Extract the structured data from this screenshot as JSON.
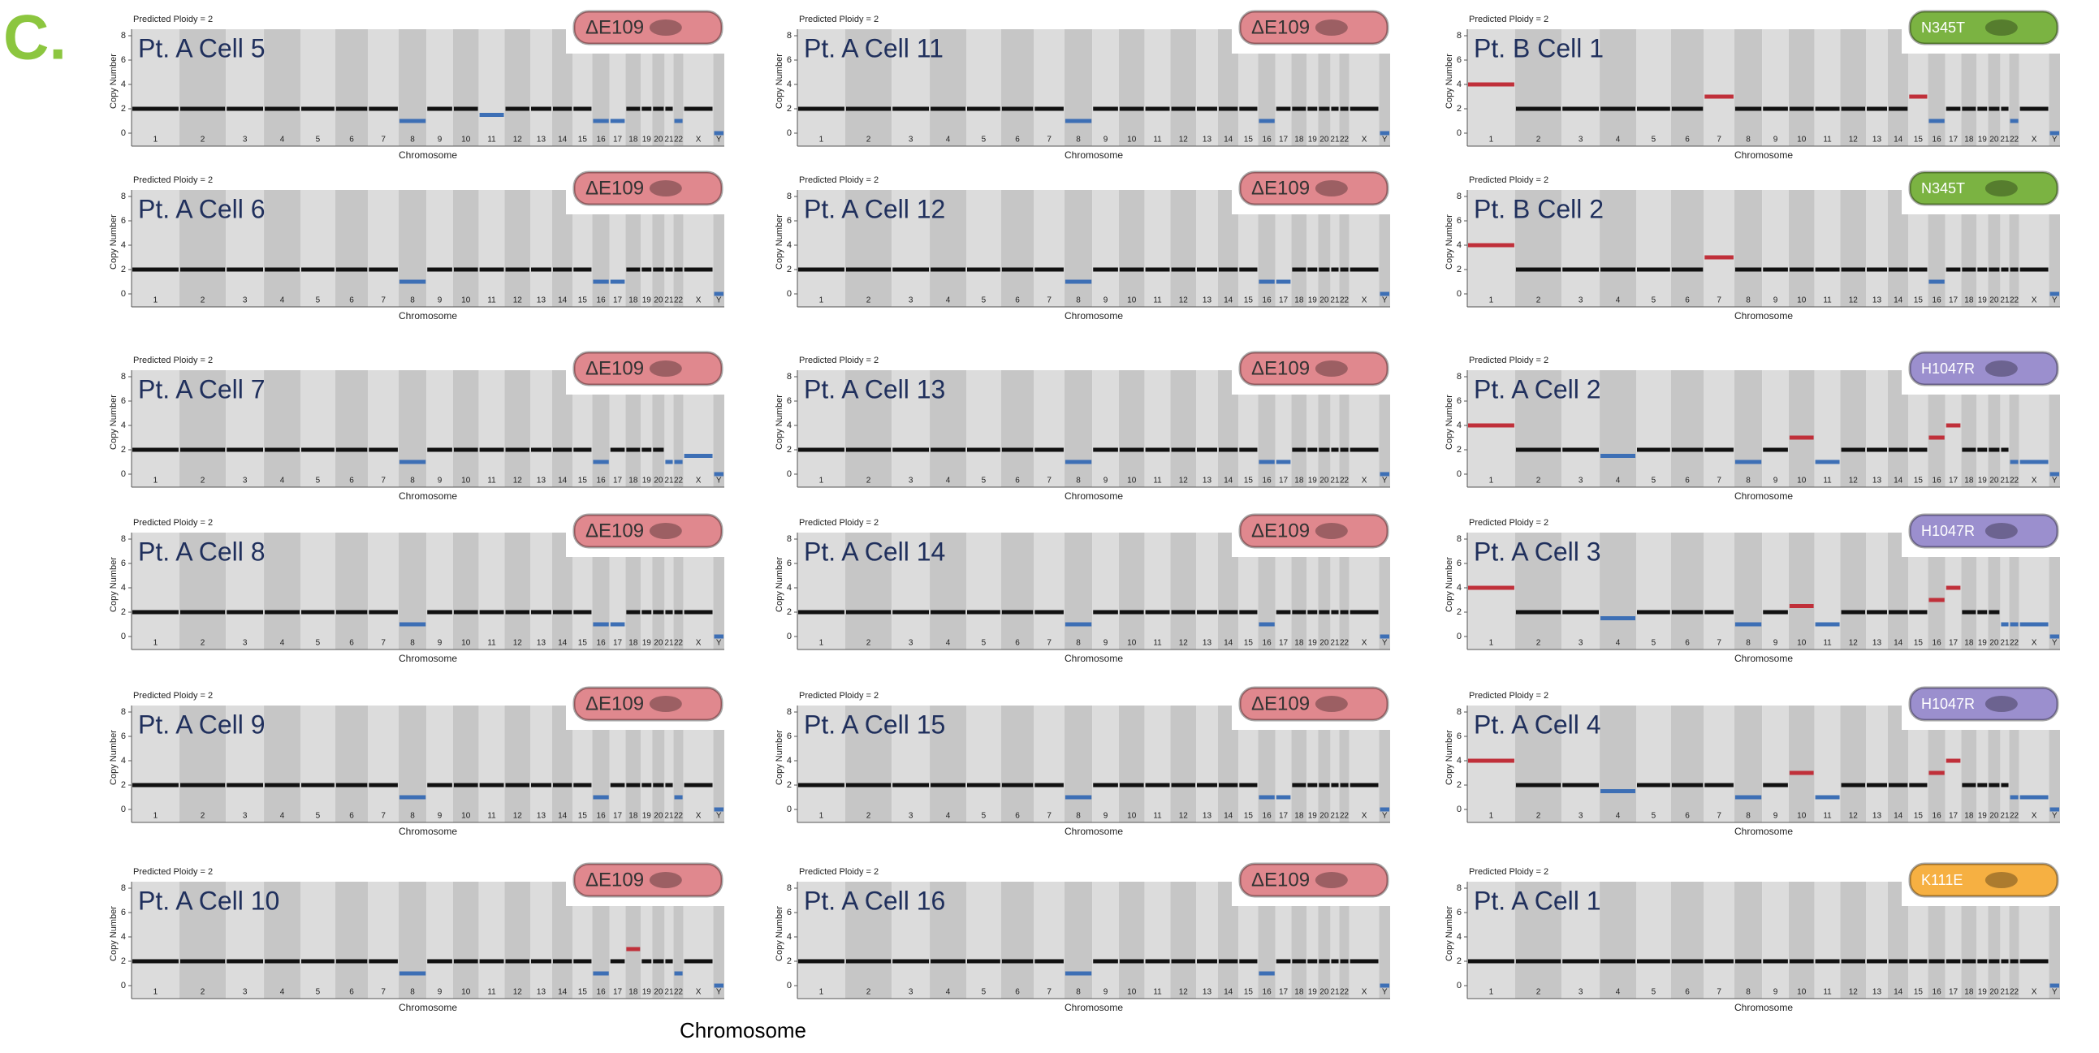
{
  "figure_label": "C.",
  "bottom_label": "Chromosome",
  "chart_data": [
    {
      "type": "segment",
      "title": "Pt. A Cell 5",
      "subtitle": "Predicted Ploidy = 2",
      "annotation": "ΔE109",
      "badge_color": "#e0888e",
      "xlabel": "Chromosome",
      "ylabel": "Copy Number",
      "ylim": [
        0,
        8
      ],
      "yticks": [
        0,
        2,
        4,
        6,
        8
      ],
      "categories": [
        "1",
        "2",
        "3",
        "4",
        "5",
        "6",
        "7",
        "8",
        "9",
        "10",
        "11",
        "12",
        "13",
        "14",
        "15",
        "16",
        "17",
        "18",
        "19",
        "20",
        "21",
        "22",
        "X",
        "Y"
      ],
      "values": [
        2,
        2,
        2,
        2,
        2,
        2,
        2,
        1,
        2,
        2,
        1.5,
        2,
        2,
        2,
        2,
        1,
        1,
        2,
        2,
        2,
        2,
        1,
        2,
        0
      ]
    },
    {
      "type": "segment",
      "title": "Pt. A Cell 6",
      "subtitle": "Predicted Ploidy = 2",
      "annotation": "ΔE109",
      "badge_color": "#e0888e",
      "xlabel": "Chromosome",
      "ylabel": "Copy Number",
      "ylim": [
        0,
        8
      ],
      "yticks": [
        0,
        2,
        4,
        6,
        8
      ],
      "categories": [
        "1",
        "2",
        "3",
        "4",
        "5",
        "6",
        "7",
        "8",
        "9",
        "10",
        "11",
        "12",
        "13",
        "14",
        "15",
        "16",
        "17",
        "18",
        "19",
        "20",
        "21",
        "22",
        "X",
        "Y"
      ],
      "values": [
        2,
        2,
        2,
        2,
        2,
        2,
        2,
        1,
        2,
        2,
        2,
        2,
        2,
        2,
        2,
        1,
        1,
        2,
        2,
        2,
        2,
        2,
        2,
        0
      ]
    },
    {
      "type": "segment",
      "title": "Pt. A Cell 7",
      "subtitle": "Predicted Ploidy = 2",
      "annotation": "ΔE109",
      "badge_color": "#e0888e",
      "xlabel": "Chromosome",
      "ylabel": "Copy Number",
      "ylim": [
        0,
        8
      ],
      "yticks": [
        0,
        2,
        4,
        6,
        8
      ],
      "categories": [
        "1",
        "2",
        "3",
        "4",
        "5",
        "6",
        "7",
        "8",
        "9",
        "10",
        "11",
        "12",
        "13",
        "14",
        "15",
        "16",
        "17",
        "18",
        "19",
        "20",
        "21",
        "22",
        "X",
        "Y"
      ],
      "values": [
        2,
        2,
        2,
        2,
        2,
        2,
        2,
        1,
        2,
        2,
        2,
        2,
        2,
        2,
        2,
        1,
        2,
        2,
        2,
        2,
        1,
        1,
        1.5,
        0
      ]
    },
    {
      "type": "segment",
      "title": "Pt. A Cell 8",
      "subtitle": "Predicted Ploidy = 2",
      "annotation": "ΔE109",
      "badge_color": "#e0888e",
      "xlabel": "Chromosome",
      "ylabel": "Copy Number",
      "ylim": [
        0,
        8
      ],
      "yticks": [
        0,
        2,
        4,
        6,
        8
      ],
      "categories": [
        "1",
        "2",
        "3",
        "4",
        "5",
        "6",
        "7",
        "8",
        "9",
        "10",
        "11",
        "12",
        "13",
        "14",
        "15",
        "16",
        "17",
        "18",
        "19",
        "20",
        "21",
        "22",
        "X",
        "Y"
      ],
      "values": [
        2,
        2,
        2,
        2,
        2,
        2,
        2,
        1,
        2,
        2,
        2,
        2,
        2,
        2,
        2,
        1,
        1,
        2,
        2,
        2,
        2,
        2,
        2,
        0
      ]
    },
    {
      "type": "segment",
      "title": "Pt. A Cell 9",
      "subtitle": "Predicted Ploidy = 2",
      "annotation": "ΔE109",
      "badge_color": "#e0888e",
      "xlabel": "Chromosome",
      "ylabel": "Copy Number",
      "ylim": [
        0,
        8
      ],
      "yticks": [
        0,
        2,
        4,
        6,
        8
      ],
      "categories": [
        "1",
        "2",
        "3",
        "4",
        "5",
        "6",
        "7",
        "8",
        "9",
        "10",
        "11",
        "12",
        "13",
        "14",
        "15",
        "16",
        "17",
        "18",
        "19",
        "20",
        "21",
        "22",
        "X",
        "Y"
      ],
      "values": [
        2,
        2,
        2,
        2,
        2,
        2,
        2,
        1,
        2,
        2,
        2,
        2,
        2,
        2,
        2,
        1,
        2,
        2,
        2,
        2,
        2,
        1,
        2,
        0
      ]
    },
    {
      "type": "segment",
      "title": "Pt. A Cell 10",
      "subtitle": "Predicted Ploidy = 2",
      "annotation": "ΔE109",
      "badge_color": "#e0888e",
      "xlabel": "Chromosome",
      "ylabel": "Copy Number",
      "ylim": [
        0,
        8
      ],
      "yticks": [
        0,
        2,
        4,
        6,
        8
      ],
      "categories": [
        "1",
        "2",
        "3",
        "4",
        "5",
        "6",
        "7",
        "8",
        "9",
        "10",
        "11",
        "12",
        "13",
        "14",
        "15",
        "16",
        "17",
        "18",
        "19",
        "20",
        "21",
        "22",
        "X",
        "Y"
      ],
      "values": [
        2,
        2,
        2,
        2,
        2,
        2,
        2,
        1,
        2,
        2,
        2,
        2,
        2,
        2,
        2,
        1,
        2,
        3,
        2,
        2,
        2,
        1,
        2,
        0
      ]
    },
    {
      "type": "segment",
      "title": "Pt. A Cell 11",
      "subtitle": "Predicted Ploidy = 2",
      "annotation": "ΔE109",
      "badge_color": "#e0888e",
      "xlabel": "Chromosome",
      "ylabel": "Copy Number",
      "ylim": [
        0,
        8
      ],
      "yticks": [
        0,
        2,
        4,
        6,
        8
      ],
      "categories": [
        "1",
        "2",
        "3",
        "4",
        "5",
        "6",
        "7",
        "8",
        "9",
        "10",
        "11",
        "12",
        "13",
        "14",
        "15",
        "16",
        "17",
        "18",
        "19",
        "20",
        "21",
        "22",
        "X",
        "Y"
      ],
      "values": [
        2,
        2,
        2,
        2,
        2,
        2,
        2,
        1,
        2,
        2,
        2,
        2,
        2,
        2,
        2,
        1,
        2,
        2,
        2,
        2,
        2,
        2,
        2,
        0
      ]
    },
    {
      "type": "segment",
      "title": "Pt. A Cell 12",
      "subtitle": "Predicted Ploidy = 2",
      "annotation": "ΔE109",
      "badge_color": "#e0888e",
      "xlabel": "Chromosome",
      "ylabel": "Copy Number",
      "ylim": [
        0,
        8
      ],
      "yticks": [
        0,
        2,
        4,
        6,
        8
      ],
      "categories": [
        "1",
        "2",
        "3",
        "4",
        "5",
        "6",
        "7",
        "8",
        "9",
        "10",
        "11",
        "12",
        "13",
        "14",
        "15",
        "16",
        "17",
        "18",
        "19",
        "20",
        "21",
        "22",
        "X",
        "Y"
      ],
      "values": [
        2,
        2,
        2,
        2,
        2,
        2,
        2,
        1,
        2,
        2,
        2,
        2,
        2,
        2,
        2,
        1,
        1,
        2,
        2,
        2,
        2,
        2,
        2,
        0
      ]
    },
    {
      "type": "segment",
      "title": "Pt. A Cell 13",
      "subtitle": "Predicted Ploidy = 2",
      "annotation": "ΔE109",
      "badge_color": "#e0888e",
      "xlabel": "Chromosome",
      "ylabel": "Copy Number",
      "ylim": [
        0,
        8
      ],
      "yticks": [
        0,
        2,
        4,
        6,
        8
      ],
      "categories": [
        "1",
        "2",
        "3",
        "4",
        "5",
        "6",
        "7",
        "8",
        "9",
        "10",
        "11",
        "12",
        "13",
        "14",
        "15",
        "16",
        "17",
        "18",
        "19",
        "20",
        "21",
        "22",
        "X",
        "Y"
      ],
      "values": [
        2,
        2,
        2,
        2,
        2,
        2,
        2,
        1,
        2,
        2,
        2,
        2,
        2,
        2,
        2,
        1,
        1,
        2,
        2,
        2,
        2,
        2,
        2,
        0
      ]
    },
    {
      "type": "segment",
      "title": "Pt. A Cell 14",
      "subtitle": "Predicted Ploidy = 2",
      "annotation": "ΔE109",
      "badge_color": "#e0888e",
      "xlabel": "Chromosome",
      "ylabel": "Copy Number",
      "ylim": [
        0,
        8
      ],
      "yticks": [
        0,
        2,
        4,
        6,
        8
      ],
      "categories": [
        "1",
        "2",
        "3",
        "4",
        "5",
        "6",
        "7",
        "8",
        "9",
        "10",
        "11",
        "12",
        "13",
        "14",
        "15",
        "16",
        "17",
        "18",
        "19",
        "20",
        "21",
        "22",
        "X",
        "Y"
      ],
      "values": [
        2,
        2,
        2,
        2,
        2,
        2,
        2,
        1,
        2,
        2,
        2,
        2,
        2,
        2,
        2,
        1,
        2,
        2,
        2,
        2,
        2,
        2,
        2,
        0
      ]
    },
    {
      "type": "segment",
      "title": "Pt. A Cell 15",
      "subtitle": "Predicted Ploidy = 2",
      "annotation": "ΔE109",
      "badge_color": "#e0888e",
      "xlabel": "Chromosome",
      "ylabel": "Copy Number",
      "ylim": [
        0,
        8
      ],
      "yticks": [
        0,
        2,
        4,
        6,
        8
      ],
      "categories": [
        "1",
        "2",
        "3",
        "4",
        "5",
        "6",
        "7",
        "8",
        "9",
        "10",
        "11",
        "12",
        "13",
        "14",
        "15",
        "16",
        "17",
        "18",
        "19",
        "20",
        "21",
        "22",
        "X",
        "Y"
      ],
      "values": [
        2,
        2,
        2,
        2,
        2,
        2,
        2,
        1,
        2,
        2,
        2,
        2,
        2,
        2,
        2,
        1,
        1,
        2,
        2,
        2,
        2,
        2,
        2,
        0
      ]
    },
    {
      "type": "segment",
      "title": "Pt. A Cell 16",
      "subtitle": "Predicted Ploidy = 2",
      "annotation": "ΔE109",
      "badge_color": "#e0888e",
      "xlabel": "Chromosome",
      "ylabel": "Copy Number",
      "ylim": [
        0,
        8
      ],
      "yticks": [
        0,
        2,
        4,
        6,
        8
      ],
      "categories": [
        "1",
        "2",
        "3",
        "4",
        "5",
        "6",
        "7",
        "8",
        "9",
        "10",
        "11",
        "12",
        "13",
        "14",
        "15",
        "16",
        "17",
        "18",
        "19",
        "20",
        "21",
        "22",
        "X",
        "Y"
      ],
      "values": [
        2,
        2,
        2,
        2,
        2,
        2,
        2,
        1,
        2,
        2,
        2,
        2,
        2,
        2,
        2,
        1,
        2,
        2,
        2,
        2,
        2,
        2,
        2,
        0
      ]
    },
    {
      "type": "segment",
      "title": "Pt. B Cell 1",
      "subtitle": "Predicted Ploidy = 2",
      "annotation": "N345T",
      "badge_color": "#7bb342",
      "xlabel": "Chromosome",
      "ylabel": "Copy Number",
      "ylim": [
        0,
        8
      ],
      "yticks": [
        0,
        2,
        4,
        6,
        8
      ],
      "categories": [
        "1",
        "2",
        "3",
        "4",
        "5",
        "6",
        "7",
        "8",
        "9",
        "10",
        "11",
        "12",
        "13",
        "14",
        "15",
        "16",
        "17",
        "18",
        "19",
        "20",
        "21",
        "22",
        "X",
        "Y"
      ],
      "values": [
        4,
        2,
        2,
        2,
        2,
        2,
        3,
        2,
        2,
        2,
        2,
        2,
        2,
        2,
        3,
        1,
        2,
        2,
        2,
        2,
        2,
        1,
        2,
        0
      ]
    },
    {
      "type": "segment",
      "title": "Pt. B Cell 2",
      "subtitle": "Predicted Ploidy = 2",
      "annotation": "N345T",
      "badge_color": "#7bb342",
      "xlabel": "Chromosome",
      "ylabel": "Copy Number",
      "ylim": [
        0,
        8
      ],
      "yticks": [
        0,
        2,
        4,
        6,
        8
      ],
      "categories": [
        "1",
        "2",
        "3",
        "4",
        "5",
        "6",
        "7",
        "8",
        "9",
        "10",
        "11",
        "12",
        "13",
        "14",
        "15",
        "16",
        "17",
        "18",
        "19",
        "20",
        "21",
        "22",
        "X",
        "Y"
      ],
      "values": [
        4,
        2,
        2,
        2,
        2,
        2,
        3,
        2,
        2,
        2,
        2,
        2,
        2,
        2,
        2,
        1,
        2,
        2,
        2,
        2,
        2,
        2,
        2,
        0
      ]
    },
    {
      "type": "segment",
      "title": "Pt. A Cell 2",
      "subtitle": "Predicted Ploidy = 2",
      "annotation": "H1047R",
      "badge_color": "#9b8fce",
      "xlabel": "Chromosome",
      "ylabel": "Copy Number",
      "ylim": [
        0,
        8
      ],
      "yticks": [
        0,
        2,
        4,
        6,
        8
      ],
      "categories": [
        "1",
        "2",
        "3",
        "4",
        "5",
        "6",
        "7",
        "8",
        "9",
        "10",
        "11",
        "12",
        "13",
        "14",
        "15",
        "16",
        "17",
        "18",
        "19",
        "20",
        "21",
        "22",
        "X",
        "Y"
      ],
      "values": [
        4,
        2,
        2,
        1.5,
        2,
        2,
        2,
        1,
        2,
        3,
        1,
        2,
        2,
        2,
        2,
        3,
        4,
        2,
        2,
        2,
        2,
        1,
        1,
        0
      ]
    },
    {
      "type": "segment",
      "title": "Pt. A Cell 3",
      "subtitle": "Predicted Ploidy = 2",
      "annotation": "H1047R",
      "badge_color": "#9b8fce",
      "xlabel": "Chromosome",
      "ylabel": "Copy Number",
      "ylim": [
        0,
        8
      ],
      "yticks": [
        0,
        2,
        4,
        6,
        8
      ],
      "categories": [
        "1",
        "2",
        "3",
        "4",
        "5",
        "6",
        "7",
        "8",
        "9",
        "10",
        "11",
        "12",
        "13",
        "14",
        "15",
        "16",
        "17",
        "18",
        "19",
        "20",
        "21",
        "22",
        "X",
        "Y"
      ],
      "values": [
        4,
        2,
        2,
        1.5,
        2,
        2,
        2,
        1,
        2,
        2.5,
        1,
        2,
        2,
        2,
        2,
        3,
        4,
        2,
        2,
        2,
        1,
        1,
        1,
        0
      ]
    },
    {
      "type": "segment",
      "title": "Pt. A Cell 4",
      "subtitle": "Predicted Ploidy = 2",
      "annotation": "H1047R",
      "badge_color": "#9b8fce",
      "xlabel": "Chromosome",
      "ylabel": "Copy Number",
      "ylim": [
        0,
        8
      ],
      "yticks": [
        0,
        2,
        4,
        6,
        8
      ],
      "categories": [
        "1",
        "2",
        "3",
        "4",
        "5",
        "6",
        "7",
        "8",
        "9",
        "10",
        "11",
        "12",
        "13",
        "14",
        "15",
        "16",
        "17",
        "18",
        "19",
        "20",
        "21",
        "22",
        "X",
        "Y"
      ],
      "values": [
        4,
        2,
        2,
        1.5,
        2,
        2,
        2,
        1,
        2,
        3,
        1,
        2,
        2,
        2,
        2,
        3,
        4,
        2,
        2,
        2,
        2,
        1,
        1,
        0
      ]
    },
    {
      "type": "segment",
      "title": "Pt. A Cell 1",
      "subtitle": "Predicted Ploidy = 2",
      "annotation": "K111E",
      "badge_color": "#f6b042",
      "xlabel": "Chromosome",
      "ylabel": "Copy Number",
      "ylim": [
        0,
        8
      ],
      "yticks": [
        0,
        2,
        4,
        6,
        8
      ],
      "categories": [
        "1",
        "2",
        "3",
        "4",
        "5",
        "6",
        "7",
        "8",
        "9",
        "10",
        "11",
        "12",
        "13",
        "14",
        "15",
        "16",
        "17",
        "18",
        "19",
        "20",
        "21",
        "22",
        "X",
        "Y"
      ],
      "values": [
        2,
        2,
        2,
        2,
        2,
        2,
        2,
        2,
        2,
        2,
        2,
        2,
        2,
        2,
        2,
        2,
        2,
        2,
        2,
        2,
        2,
        2,
        2,
        0
      ]
    }
  ]
}
